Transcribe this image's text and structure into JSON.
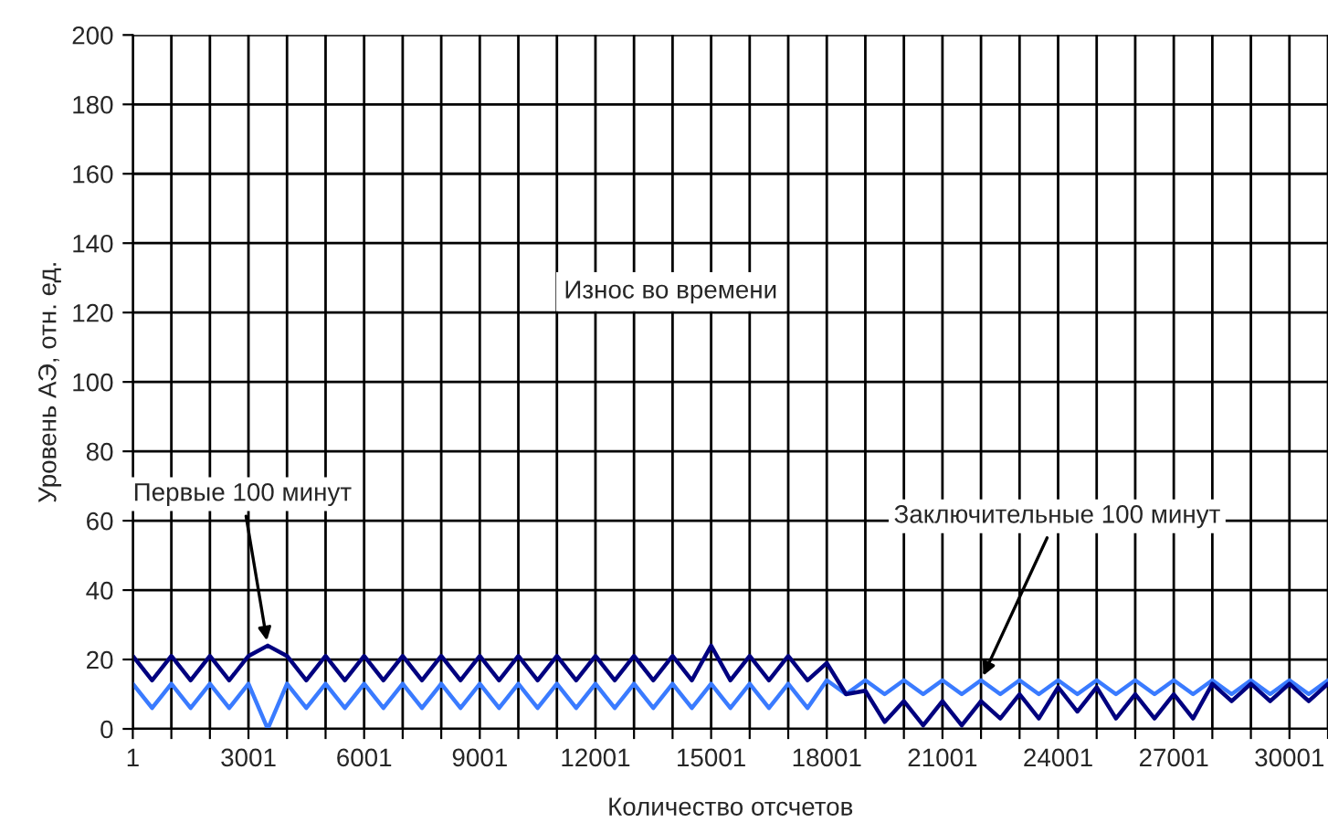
{
  "chart_data": {
    "type": "line",
    "xlabel": "Количество отсчетов",
    "ylabel": "Уровень АЭ, отн. ед.",
    "x": [
      1,
      501,
      1001,
      1501,
      2001,
      2501,
      3001,
      3501,
      4001,
      4501,
      5001,
      5501,
      6001,
      6501,
      7001,
      7501,
      8001,
      8501,
      9001,
      9501,
      10001,
      10501,
      11001,
      11501,
      12001,
      12501,
      13001,
      13501,
      14001,
      14501,
      15001,
      15501,
      16001,
      16501,
      17001,
      17501,
      18001,
      18501,
      19001,
      19501,
      20001,
      20501,
      21001,
      21501,
      22001,
      22501,
      23001,
      23501,
      24001,
      24501,
      25001,
      25501,
      26001,
      26501,
      27001,
      27501,
      28001,
      28501,
      29001,
      29501,
      30001,
      30501,
      31001
    ],
    "series": [
      {
        "name": "Заключительные 100 минут",
        "color": "#3a7bff",
        "values": [
          13,
          6,
          13,
          6,
          13,
          6,
          13,
          0,
          13,
          6,
          13,
          6,
          13,
          6,
          13,
          6,
          13,
          6,
          13,
          6,
          13,
          6,
          13,
          6,
          13,
          6,
          13,
          6,
          13,
          6,
          13,
          6,
          13,
          6,
          13,
          6,
          14,
          10,
          14,
          10,
          14,
          10,
          14,
          10,
          14,
          10,
          14,
          10,
          14,
          10,
          14,
          10,
          14,
          10,
          14,
          10,
          14,
          10,
          14,
          10,
          14,
          10,
          14
        ]
      },
      {
        "name": "Первые 100 минут",
        "color": "#00007f",
        "values": [
          21,
          14,
          21,
          14,
          21,
          14,
          21,
          24,
          21,
          14,
          21,
          14,
          21,
          14,
          21,
          14,
          21,
          14,
          21,
          14,
          21,
          14,
          21,
          14,
          21,
          14,
          21,
          14,
          21,
          14,
          24,
          14,
          21,
          14,
          21,
          14,
          19,
          10,
          11,
          2,
          8,
          1,
          8,
          1,
          8,
          3,
          10,
          3,
          12,
          5,
          12,
          3,
          10,
          3,
          10,
          3,
          13,
          8,
          13,
          8,
          13,
          8,
          13
        ]
      }
    ],
    "xlim": [
      1,
      31001
    ],
    "xticks": [
      1,
      {
        "value": 1001,
        "label": null
      },
      {
        "value": 2001,
        "label": null
      },
      3001,
      {
        "value": 4001,
        "label": null
      },
      {
        "value": 5001,
        "label": null
      },
      6001,
      {
        "value": 7001,
        "label": null
      },
      {
        "value": 8001,
        "label": null
      },
      9001,
      {
        "value": 10001,
        "label": null
      },
      {
        "value": 11001,
        "label": null
      },
      12001,
      {
        "value": 13001,
        "label": null
      },
      {
        "value": 14001,
        "label": null
      },
      15001,
      {
        "value": 16001,
        "label": null
      },
      {
        "value": 17001,
        "label": null
      },
      18001,
      {
        "value": 19001,
        "label": null
      },
      {
        "value": 20001,
        "label": null
      },
      21001,
      {
        "value": 22001,
        "label": null
      },
      {
        "value": 23001,
        "label": null
      },
      24001,
      {
        "value": 25001,
        "label": null
      },
      {
        "value": 26001,
        "label": null
      },
      27001,
      {
        "value": 28001,
        "label": null
      },
      {
        "value": 29001,
        "label": null
      },
      30001,
      {
        "value": 31001,
        "label": null
      }
    ],
    "ylim": [
      0,
      200
    ],
    "yticks": [
      0,
      20,
      40,
      60,
      80,
      100,
      120,
      140,
      160,
      180,
      200
    ],
    "grid": true,
    "legend": false,
    "annotations": [
      "Износ во времени"
    ]
  }
}
